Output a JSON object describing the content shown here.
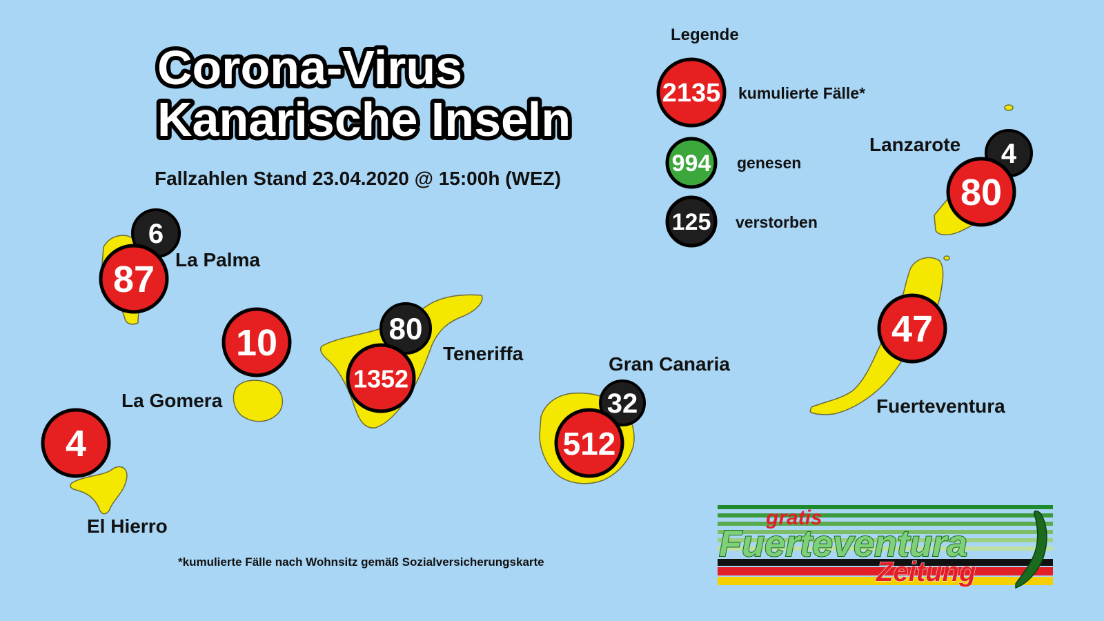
{
  "header": {
    "title_line1": "Corona-Virus",
    "title_line2": "Kanarische Inseln",
    "subtitle": "Fallzahlen Stand 23.04.2020 @ 15:00h (WEZ)"
  },
  "legend": {
    "heading": "Legende",
    "items": [
      {
        "value": "2135",
        "label": "kumulierte Fälle*",
        "color": "#e62020"
      },
      {
        "value": "994",
        "label": "genesen",
        "color": "#3ca83c"
      },
      {
        "value": "125",
        "label": "verstorben",
        "color": "#1e1e1e"
      }
    ]
  },
  "islands": {
    "la_palma": {
      "name": "La Palma",
      "cases": "87",
      "deaths": "6"
    },
    "la_gomera": {
      "name": "La Gomera",
      "cases": "10"
    },
    "el_hierro": {
      "name": "El Hierro",
      "cases": "4"
    },
    "teneriffa": {
      "name": "Teneriffa",
      "cases": "1352",
      "deaths": "80"
    },
    "gran_canaria": {
      "name": "Gran Canaria",
      "cases": "512",
      "deaths": "32"
    },
    "fuerteventura": {
      "name": "Fuerteventura",
      "cases": "47"
    },
    "lanzarote": {
      "name": "Lanzarote",
      "cases": "80",
      "deaths": "4"
    }
  },
  "footnote": "*kumulierte Fälle nach Wohnsitz gemäß Sozialversicherungskarte",
  "logo": {
    "line1": "gratis",
    "line2": "Fuerteventura",
    "line3": "Zeitung"
  },
  "colors": {
    "sea": "#a9d6f5",
    "island": "#f5e800",
    "cases": "#e62020",
    "recovered": "#3ca83c",
    "deaths": "#1e1e1e"
  }
}
